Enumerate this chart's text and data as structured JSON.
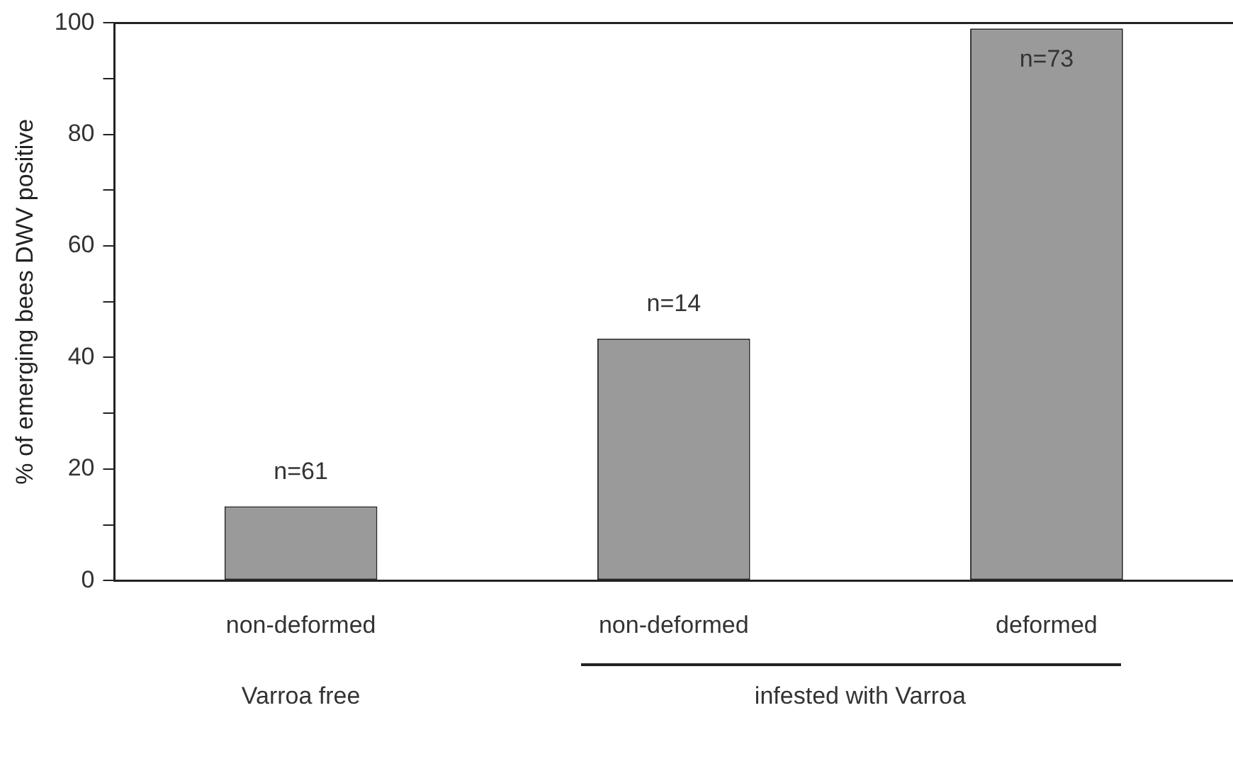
{
  "chart_data": {
    "type": "bar",
    "ylabel": "% of emerging bees DWV positive",
    "categories": [
      "non-deformed",
      "non-deformed",
      "deformed"
    ],
    "values": [
      13.3,
      43.4,
      99
    ],
    "color": "#9a9a9b",
    "ylim": [
      0,
      100
    ],
    "yticks": [
      0,
      {
        "value": 10,
        "label": null
      },
      20,
      {
        "value": 30,
        "label": null
      },
      40,
      {
        "value": 50,
        "label": null
      },
      60,
      {
        "value": 70,
        "label": null
      },
      80,
      {
        "value": 90,
        "label": null
      },
      100
    ],
    "grid": false,
    "legend": false,
    "annotations": [
      "Varroa free",
      "infested with Varroa",
      "n=61",
      "n=14",
      "n=73"
    ]
  }
}
